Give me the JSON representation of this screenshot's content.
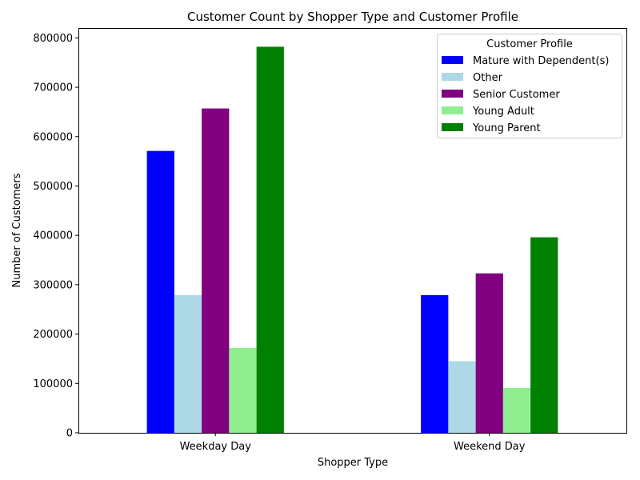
{
  "chart_data": {
    "type": "bar",
    "title": "Customer Count by Shopper Type and Customer Profile",
    "xlabel": "Shopper Type",
    "ylabel": "Number of Customers",
    "categories": [
      "Weekday Day",
      "Weekend Day"
    ],
    "ylim": [
      0,
      820000
    ],
    "yticks": [
      0,
      100000,
      200000,
      300000,
      400000,
      500000,
      600000,
      700000,
      800000
    ],
    "grid": false,
    "legend": {
      "title": "Customer Profile",
      "position": "top-right"
    },
    "series": [
      {
        "name": "Mature with Dependent(s)",
        "color": "#0000ff",
        "values": [
          571000,
          279000
        ]
      },
      {
        "name": "Other",
        "color": "#add8e6",
        "values": [
          279000,
          145000
        ]
      },
      {
        "name": "Senior Customer",
        "color": "#800080",
        "values": [
          657000,
          323000
        ]
      },
      {
        "name": "Young Adult",
        "color": "#90ee90",
        "values": [
          172000,
          91000
        ]
      },
      {
        "name": "Young Parent",
        "color": "#008000",
        "values": [
          782000,
          396000
        ]
      }
    ]
  }
}
